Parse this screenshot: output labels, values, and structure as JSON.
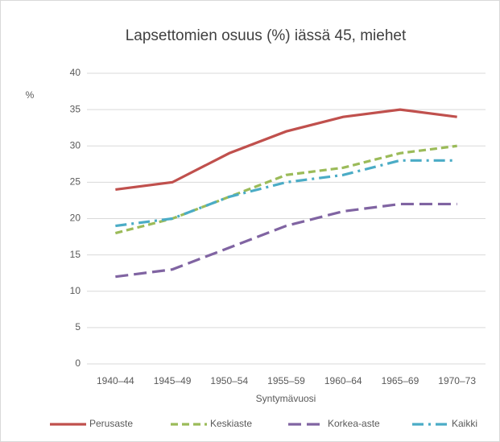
{
  "chart_data": {
    "type": "line",
    "title": "Lapsettomien osuus (%) iässä 45, miehet",
    "y_label": "%",
    "x_label": "Syntymävuosi",
    "categories": [
      "1940–44",
      "1945–49",
      "1950–54",
      "1955–59",
      "1960–64",
      "1965–69",
      "1970–73"
    ],
    "series": [
      {
        "name": "Perusaste",
        "color": "#c0504d",
        "line_style": "solid",
        "values": [
          24,
          25,
          29,
          32,
          34,
          35,
          34
        ]
      },
      {
        "name": "Keskiaste",
        "color": "#9bbb59",
        "line_style": "dashed",
        "values": [
          18,
          20,
          23,
          26,
          27,
          29,
          30
        ]
      },
      {
        "name": "Korkea-aste",
        "color": "#8064a2",
        "line_style": "long-dashed",
        "values": [
          12,
          13,
          16,
          19,
          21,
          22,
          22
        ]
      },
      {
        "name": "Kaikki",
        "color": "#4bacc6",
        "line_style": "dash-dot",
        "values": [
          19,
          20,
          23,
          25,
          26,
          28,
          28
        ]
      }
    ],
    "ylim": [
      0,
      40
    ],
    "yticks": [
      0,
      5,
      10,
      15,
      20,
      25,
      30,
      35,
      40
    ],
    "grid": true,
    "legend": "bottom"
  }
}
